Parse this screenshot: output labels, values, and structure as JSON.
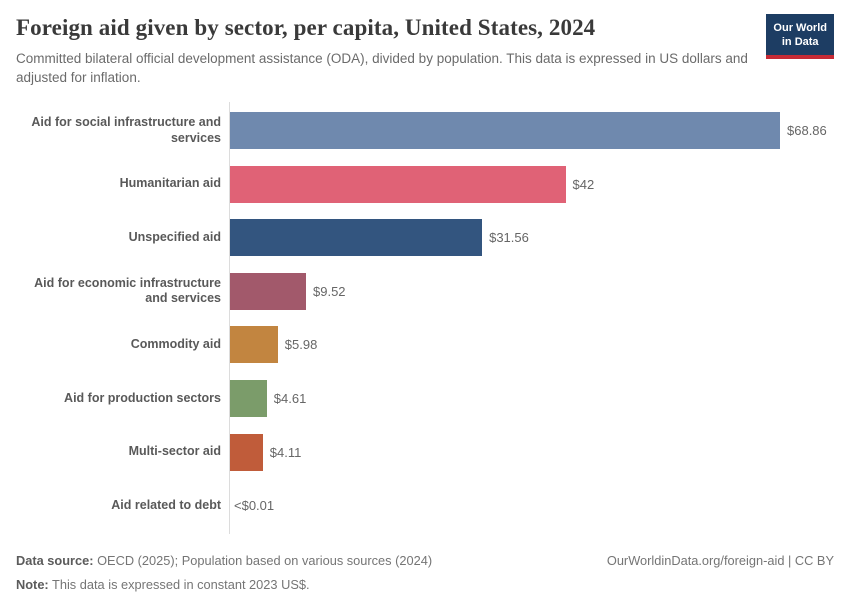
{
  "header": {
    "title": "Foreign aid given by sector, per capita, United States, 2024",
    "subtitle": "Committed bilateral official development assistance (ODA), divided by population. This data is expressed in US dollars and adjusted for inflation.",
    "logo": {
      "line1": "Our World",
      "line2": "in Data"
    }
  },
  "chart_data": {
    "type": "bar",
    "orientation": "horizontal",
    "title": "Foreign aid given by sector, per capita, United States, 2024",
    "unit": "US dollars per capita",
    "xlim": [
      0,
      68.86
    ],
    "grid": false,
    "categories": [
      "Aid for social infrastructure and services",
      "Humanitarian aid",
      "Unspecified aid",
      "Aid for economic infrastructure and services",
      "Commodity aid",
      "Aid for production sectors",
      "Multi-sector aid",
      "Aid related to debt"
    ],
    "values": [
      68.86,
      42,
      31.56,
      9.52,
      5.98,
      4.61,
      4.11,
      0.005
    ],
    "value_labels": [
      "$68.86",
      "$42",
      "$31.56",
      "$9.52",
      "$5.98",
      "$4.61",
      "$4.11",
      "<$0.01"
    ],
    "bar_colors": [
      "#6f89ae",
      "#e06276",
      "#33557f",
      "#a2596b",
      "#c28540",
      "#7b9c6a",
      "#c05c3a",
      "#999999"
    ]
  },
  "colors": {
    "logo_bg": "#1d3d63",
    "logo_red": "#c62a35",
    "axis": "#dcdcdc"
  },
  "footer": {
    "source_label": "Data source:",
    "source_text": " OECD (2025); Population based on various sources (2024)",
    "note_label": "Note:",
    "note_text": " This data is expressed in constant 2023 US$.",
    "link": "OurWorldinData.org/foreign-aid | CC BY"
  }
}
